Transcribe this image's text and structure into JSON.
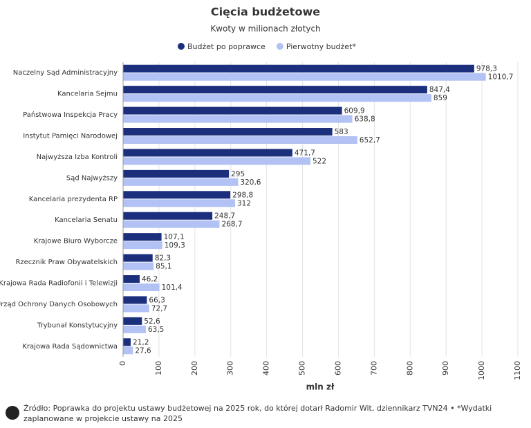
{
  "chart_data": {
    "type": "hbar",
    "title": "Cięcia budżetowe",
    "subtitle": "Kwoty w milionach złotych",
    "categories": [
      "Naczelny Sąd Administracyjny",
      "Kancelaria Sejmu",
      "Państwowa Inspekcja Pracy",
      "Instytut Pamięci Narodowej",
      "Najwyższa Izba Kontroli",
      "Sąd Najwyższy",
      "Kancelaria prezydenta RP",
      "Kancelaria Senatu",
      "Krajowe Biuro Wyborcze",
      "Rzecznik Praw Obywatelskich",
      "Krajowa Rada Radiofonii i Telewizji",
      "Urząd Ochrony Danych Osobowych",
      "Trybunał Konstytucyjny",
      "Krajowa Rada Sądownictwa"
    ],
    "series": [
      {
        "name": "Budżet po poprawce",
        "color": "#1b2f7d",
        "values": [
          978.3,
          847.4,
          609.9,
          583,
          471.7,
          295,
          298.8,
          248.7,
          107.1,
          82.3,
          46.2,
          66.3,
          52.6,
          21.2
        ],
        "value_labels": [
          "978,3",
          "847,4",
          "609,9",
          "583",
          "471,7",
          "295",
          "298,8",
          "248,7",
          "107,1",
          "82,3",
          "46,2",
          "66,3",
          "52,6",
          "21,2"
        ]
      },
      {
        "name": "Pierwotny budżet*",
        "color": "#b3c2f4",
        "values": [
          1010.7,
          859,
          638.8,
          652.7,
          522,
          320.6,
          312,
          268.7,
          109.3,
          85.1,
          101.4,
          72.7,
          63.5,
          27.6
        ],
        "value_labels": [
          "1010,7",
          "859",
          "638,8",
          "652,7",
          "522",
          "320,6",
          "312",
          "268,7",
          "109,3",
          "85,1",
          "101,4",
          "72,7",
          "63,5",
          "27,6"
        ]
      }
    ],
    "xlim": [
      0,
      1100
    ],
    "xticks": [
      0,
      100,
      200,
      300,
      400,
      500,
      600,
      700,
      800,
      900,
      1000,
      1100
    ],
    "xlabel": "mln zł",
    "grid": true,
    "footer": "Źródło: Poprawka do projektu ustawy budżetowej na 2025 rok, do której dotarł Radomir Wit, dziennikarz TVN24 • *Wydatki zaplanowane w projekcie ustawy na 2025"
  }
}
